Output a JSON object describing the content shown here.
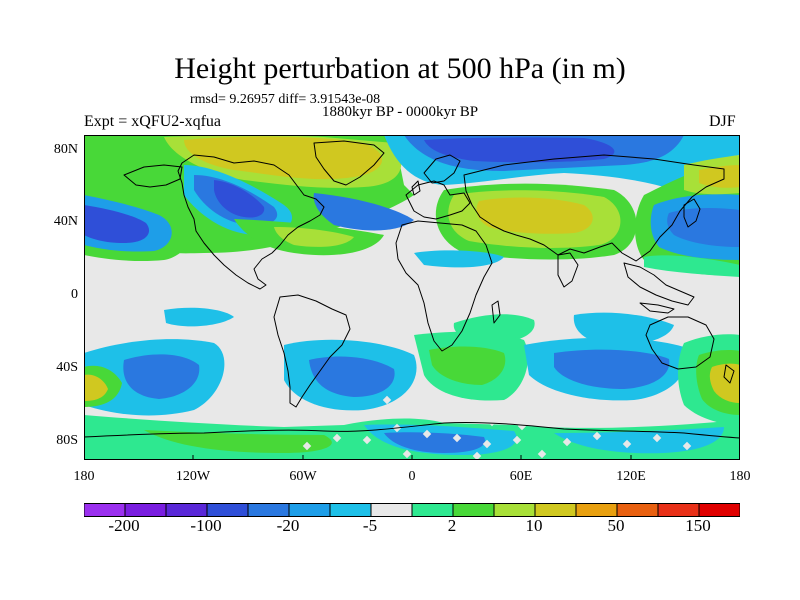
{
  "title": "Height perturbation at 500 hPa (in m)",
  "stats": "rmsd= 9.26957 diff= 3.91543e-08",
  "period": "1880kyr BP - 0000kyr BP",
  "experiment": "Expt = xQFU2-xqfua",
  "season": "DJF",
  "axes": {
    "y_ticks": [
      "80N",
      "40N",
      "0",
      "40S",
      "80S"
    ],
    "x_ticks": [
      "180",
      "120W",
      "60W",
      "0",
      "60E",
      "120E",
      "180"
    ]
  },
  "colorbar": {
    "colors": [
      "#9b30ef",
      "#7a1ee0",
      "#5a28d8",
      "#2f4fd8",
      "#2a78e0",
      "#1e9ee8",
      "#1ec0e8",
      "#e8e8e8",
      "#2ee890",
      "#48d838",
      "#a8e038",
      "#d0c820",
      "#e8a010",
      "#e86010",
      "#e83018",
      "#e00000"
    ],
    "labels": [
      "-200",
      "-100",
      "-20",
      "-5",
      "2",
      "10",
      "50",
      "150"
    ]
  },
  "colors": {
    "land_outline": "#000000",
    "neutral": "#e8e8e8"
  }
}
